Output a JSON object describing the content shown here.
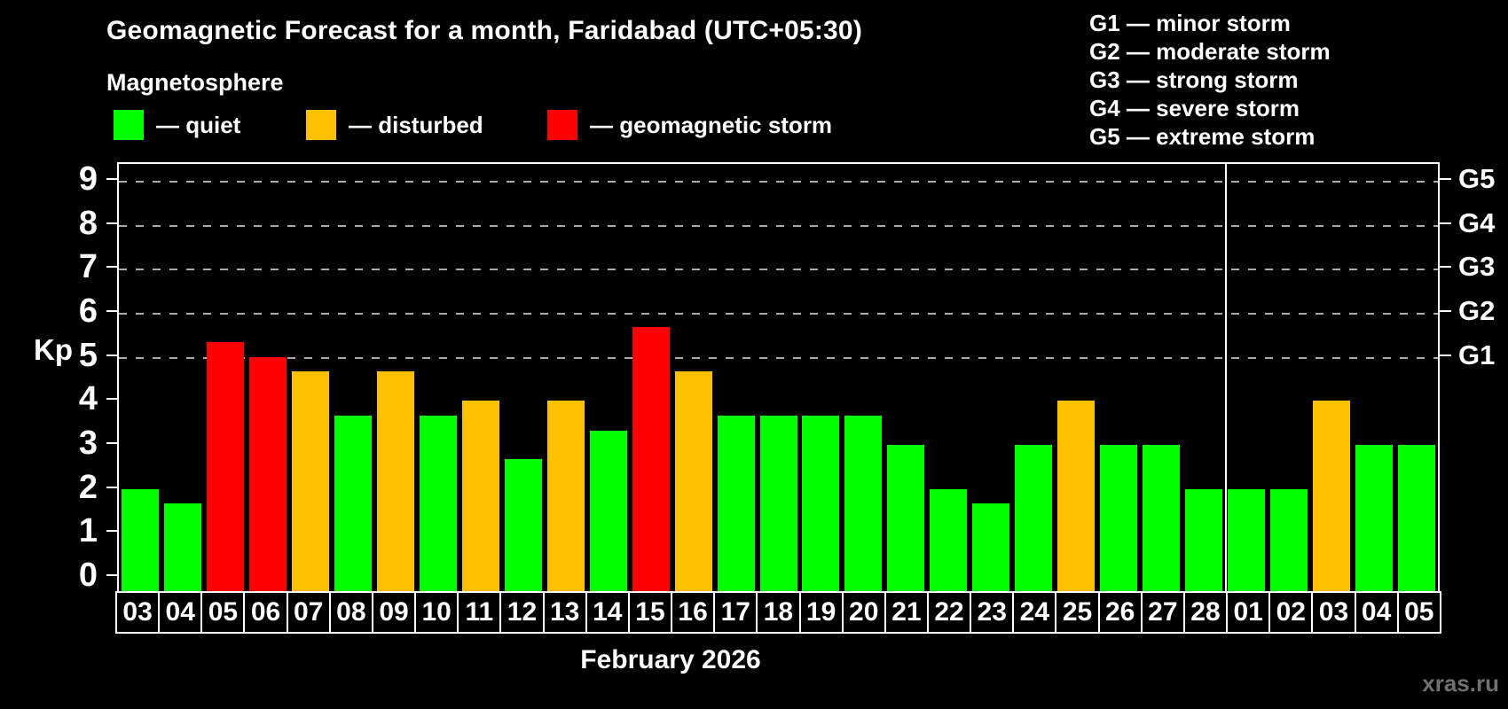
{
  "header": {
    "title": "Geomagnetic Forecast for a month, Faridabad (UTC+05:30)",
    "subtitle": "Magnetosphere"
  },
  "legend": {
    "items": [
      {
        "label": "— quiet",
        "status": "quiet"
      },
      {
        "label": "— disturbed",
        "status": "disturbed"
      },
      {
        "label": "— geomagnetic storm",
        "status": "storm"
      }
    ]
  },
  "g_legend": {
    "lines": [
      "G1 — minor storm",
      "G2 — moderate storm",
      "G3 — strong storm",
      "G4 — severe storm",
      "G5 — extreme storm"
    ]
  },
  "axes": {
    "y_label": "Kp",
    "y_ticks": [
      0,
      1,
      2,
      3,
      4,
      5,
      6,
      7,
      8,
      9
    ],
    "right_ticks": [
      {
        "label": "G1",
        "kp": 5
      },
      {
        "label": "G2",
        "kp": 6
      },
      {
        "label": "G3",
        "kp": 7
      },
      {
        "label": "G4",
        "kp": 8
      },
      {
        "label": "G5",
        "kp": 9
      }
    ],
    "x_label": "February 2026"
  },
  "watermark": "xras.ru",
  "chart_data": {
    "type": "bar",
    "title": "Geomagnetic Forecast for a month, Faridabad (UTC+05:30)",
    "ylabel": "Kp",
    "xlabel": "February 2026",
    "ylim": [
      0,
      9
    ],
    "grid_on_kp_levels": [
      5,
      6,
      7,
      8,
      9
    ],
    "legend_position": "top",
    "categories": [
      "03",
      "04",
      "05",
      "06",
      "07",
      "08",
      "09",
      "10",
      "11",
      "12",
      "13",
      "14",
      "15",
      "16",
      "17",
      "18",
      "19",
      "20",
      "21",
      "22",
      "23",
      "24",
      "25",
      "26",
      "27",
      "28",
      "01",
      "02",
      "03",
      "04",
      "05"
    ],
    "values": [
      2,
      1.67,
      5.33,
      5,
      4.67,
      3.67,
      4.67,
      3.67,
      4,
      2.67,
      4,
      3.33,
      5.67,
      4.67,
      3.67,
      3.67,
      3.67,
      3.67,
      3,
      2,
      1.67,
      3,
      4,
      3,
      3,
      2,
      2,
      2,
      4,
      3,
      3
    ],
    "statuses": [
      "quiet",
      "quiet",
      "storm",
      "storm",
      "disturbed",
      "quiet",
      "disturbed",
      "quiet",
      "disturbed",
      "quiet",
      "disturbed",
      "quiet",
      "storm",
      "disturbed",
      "quiet",
      "quiet",
      "quiet",
      "quiet",
      "quiet",
      "quiet",
      "quiet",
      "quiet",
      "disturbed",
      "quiet",
      "quiet",
      "quiet",
      "quiet",
      "quiet",
      "disturbed",
      "quiet",
      "quiet"
    ],
    "colors": {
      "quiet": "#00ff00",
      "disturbed": "#ffc000",
      "storm": "#ff0000"
    },
    "month_separator_after_index": 25
  }
}
